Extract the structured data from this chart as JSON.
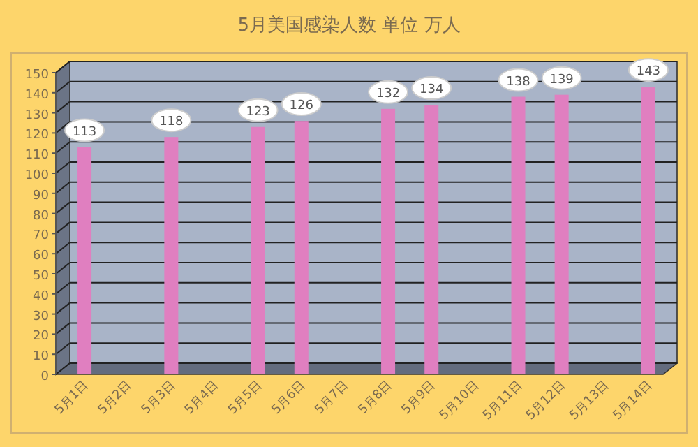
{
  "chart_data": {
    "type": "bar",
    "title": "5月美国感染人数 单位 万人",
    "categories": [
      "5月1日",
      "5月2日",
      "5月3日",
      "5月4日",
      "5月5日",
      "5月6日",
      "5月7日",
      "5月8日",
      "5月9日",
      "5月10日",
      "5月11日",
      "5月12日",
      "5月13日",
      "5月14日"
    ],
    "values": [
      113,
      null,
      118,
      null,
      123,
      126,
      null,
      132,
      134,
      null,
      138,
      139,
      null,
      143
    ],
    "color": "#e07fc0",
    "ylim": [
      0,
      150
    ],
    "yticks": [
      0,
      10,
      20,
      30,
      40,
      50,
      60,
      70,
      80,
      90,
      100,
      110,
      120,
      130,
      140,
      150
    ],
    "grid": "y",
    "data_labels": true
  }
}
